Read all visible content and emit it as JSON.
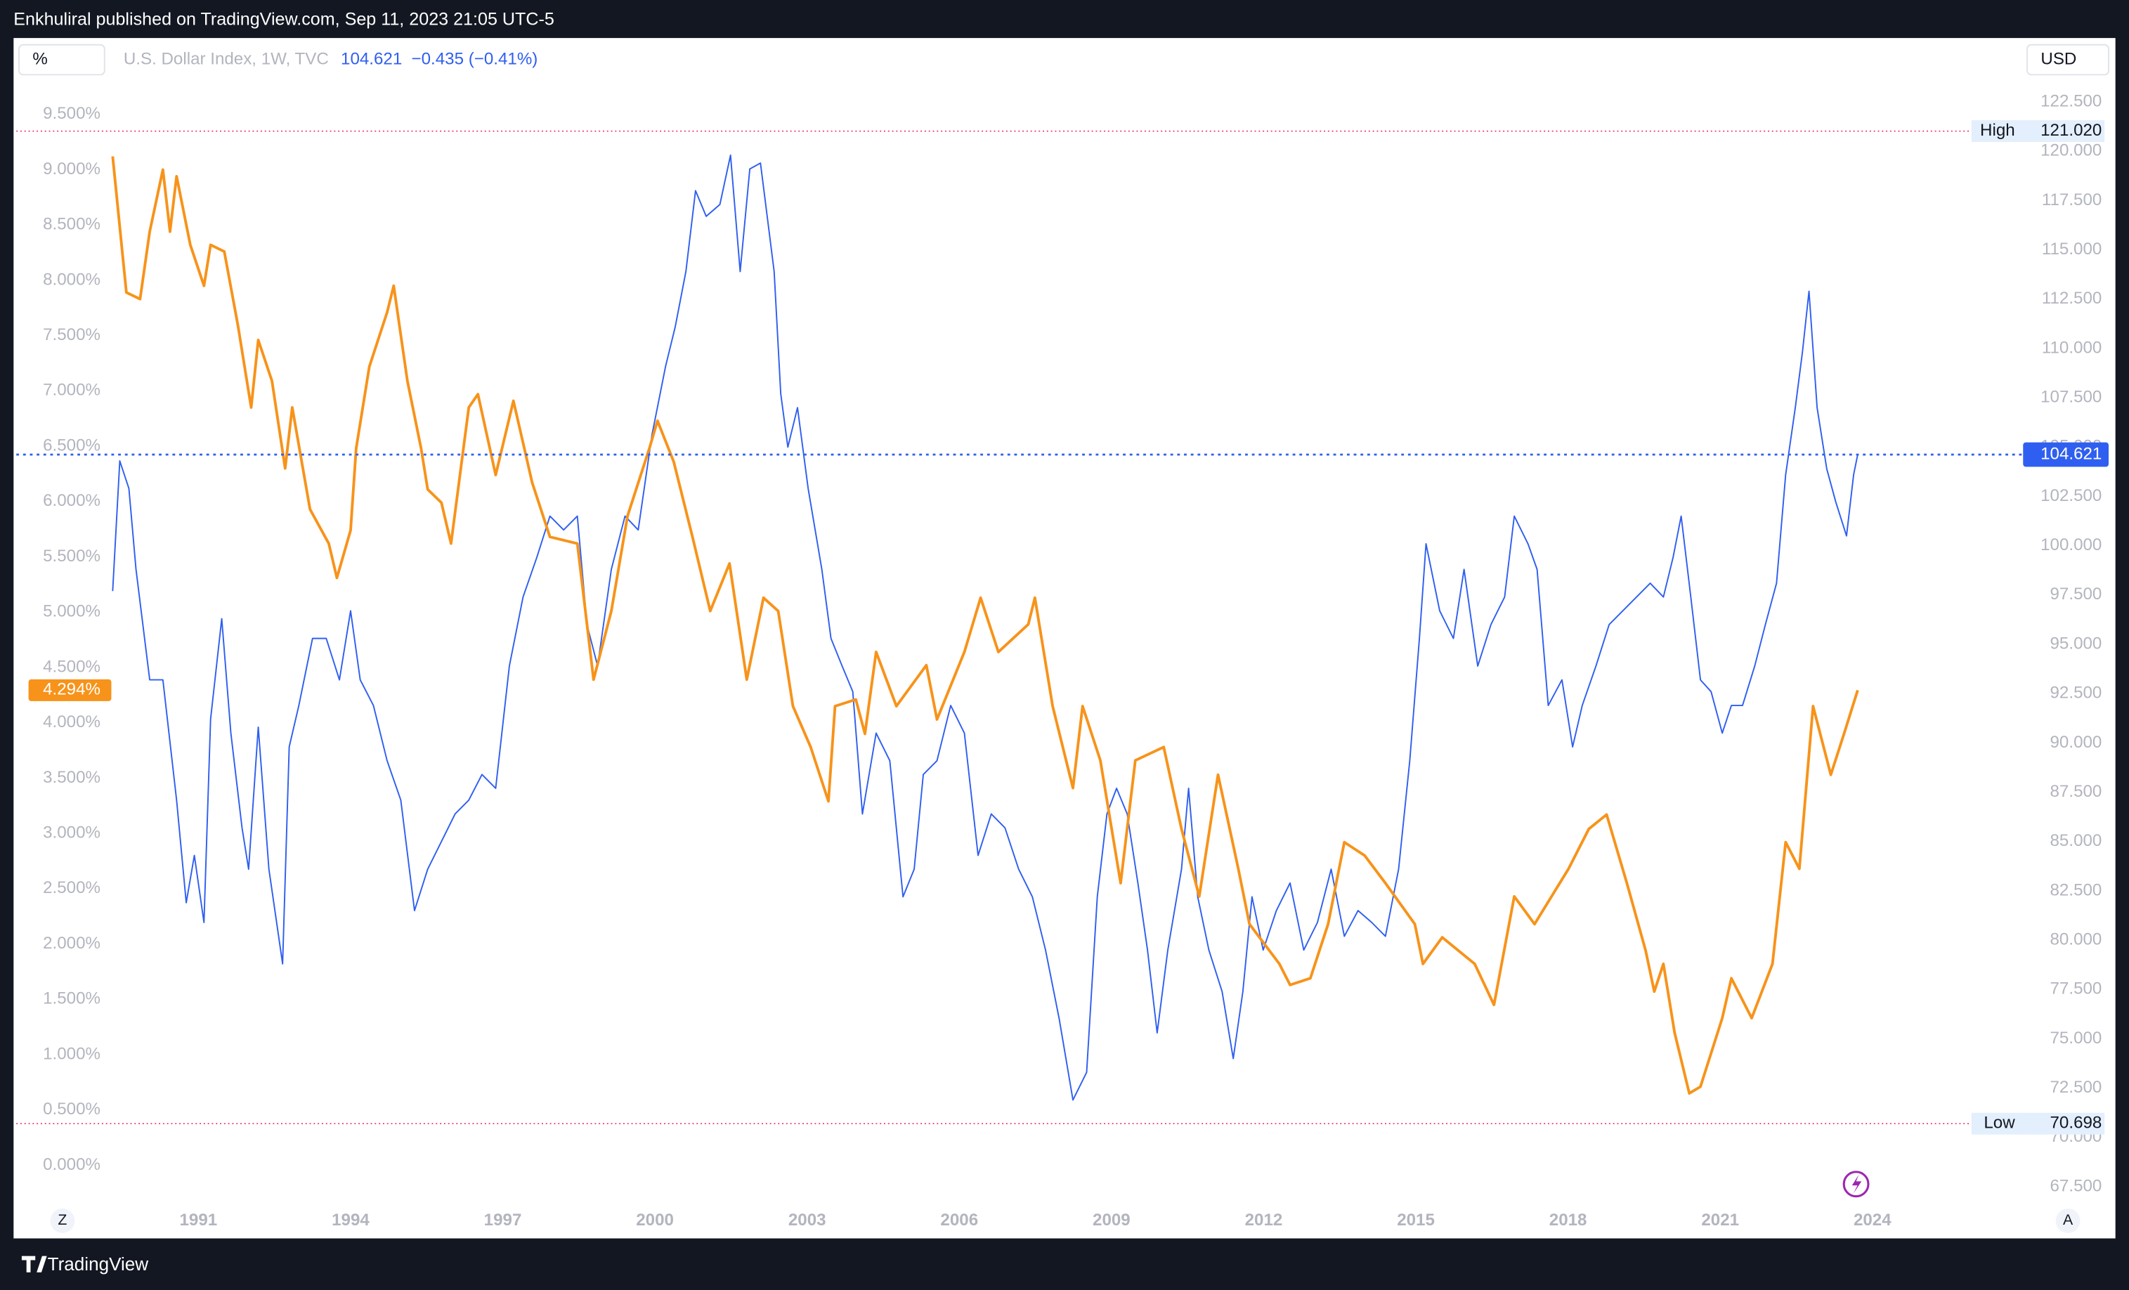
{
  "header": {
    "text": "Enkhuliral published on TradingView.com, Sep 11, 2023 21:05 UTC-5"
  },
  "toolbar": {
    "scale": "%",
    "currency": "USD",
    "left_button": "Z",
    "right_button": "A"
  },
  "footer": {
    "brand": "TradingView"
  },
  "chart_data": {
    "type": "line",
    "legend": {
      "price": 104.621,
      "change": "−0.435 (−0.41%)"
    },
    "price_line": 104.621,
    "left_badge": {
      "value": 4.294,
      "label": "4.294%"
    },
    "high": {
      "name": "High",
      "level": {
        "value": 121.02,
        "label": "121.020"
      }
    },
    "low": {
      "name": "Low",
      "level": {
        "value": 70.698,
        "label": "70.698"
      }
    },
    "grid": false,
    "xlim": [
      1987.41,
      2026.81
    ],
    "xticks": [
      1991,
      1994,
      1997,
      2000,
      2003,
      2006,
      2009,
      2012,
      2015,
      2018,
      2021,
      2024
    ],
    "ylim": [
      -0.33,
      10.19
    ],
    "yticks": [
      {
        "value": 0,
        "label": "0.000%"
      },
      {
        "value": 0.5,
        "label": "0.500%"
      },
      {
        "value": 1,
        "label": "1.000%"
      },
      {
        "value": 1.5,
        "label": "1.500%"
      },
      {
        "value": 2,
        "label": "2.000%"
      },
      {
        "value": 2.5,
        "label": "2.500%"
      },
      {
        "value": 3,
        "label": "3.000%"
      },
      {
        "value": 3.5,
        "label": "3.500%"
      },
      {
        "value": 4,
        "label": "4.000%"
      },
      {
        "value": 4.5,
        "label": "4.500%"
      },
      {
        "value": 5,
        "label": "5.000%"
      },
      {
        "value": 5.5,
        "label": "5.500%"
      },
      {
        "value": 6,
        "label": "6.000%"
      },
      {
        "value": 6.5,
        "label": "6.500%"
      },
      {
        "value": 7,
        "label": "7.000%"
      },
      {
        "value": 7.5,
        "label": "7.500%"
      },
      {
        "value": 8,
        "label": "8.000%"
      },
      {
        "value": 8.5,
        "label": "8.500%"
      },
      {
        "value": 9,
        "label": "9.000%"
      },
      {
        "value": 9.5,
        "label": "9.500%"
      }
    ],
    "y2lim": [
      66.74,
      125.74
    ],
    "y2ticks": [
      {
        "value": 67.5,
        "label": "67.500"
      },
      {
        "value": 70,
        "label": "70.000"
      },
      {
        "value": 72.5,
        "label": "72.500"
      },
      {
        "value": 75,
        "label": "75.000"
      },
      {
        "value": 77.5,
        "label": "77.500"
      },
      {
        "value": 80,
        "label": "80.000"
      },
      {
        "value": 82.5,
        "label": "82.500"
      },
      {
        "value": 85,
        "label": "85.000"
      },
      {
        "value": 87.5,
        "label": "87.500"
      },
      {
        "value": 90,
        "label": "90.000"
      },
      {
        "value": 92.5,
        "label": "92.500"
      },
      {
        "value": 95,
        "label": "95.000"
      },
      {
        "value": 97.5,
        "label": "97.500"
      },
      {
        "value": 100,
        "label": "100.000"
      },
      {
        "value": 102.5,
        "label": "102.500"
      },
      {
        "value": 105,
        "label": "105.000"
      },
      {
        "value": 107.5,
        "label": "107.500"
      },
      {
        "value": 110,
        "label": "110.000"
      },
      {
        "value": 112.5,
        "label": "112.500"
      },
      {
        "value": 115,
        "label": "115.000"
      },
      {
        "value": 117.5,
        "label": "117.500"
      },
      {
        "value": 120,
        "label": "120.000"
      },
      {
        "value": 122.5,
        "label": "122.500"
      }
    ],
    "series": [
      {
        "name": "U.S. Dollar Index, 1W, TVC",
        "color": "#2f5ff0",
        "axis": "y2",
        "x": [
          1989.31,
          1989.45,
          1989.63,
          1989.77,
          1990.04,
          1990.3,
          1990.57,
          1990.76,
          1990.92,
          1991.11,
          1991.24,
          1991.46,
          1991.64,
          1991.86,
          1991.99,
          1992.18,
          1992.39,
          1992.66,
          1992.79,
          1992.98,
          1993.25,
          1993.52,
          1993.78,
          1994.0,
          1994.19,
          1994.45,
          1994.72,
          1994.99,
          1995.26,
          1995.52,
          1995.79,
          1996.06,
          1996.33,
          1996.59,
          1996.86,
          1997.13,
          1997.4,
          1997.67,
          1997.93,
          1998.2,
          1998.47,
          1998.66,
          1998.87,
          1999.14,
          1999.41,
          1999.67,
          1999.94,
          2000.21,
          2000.4,
          2000.61,
          2000.8,
          2001.01,
          2001.28,
          2001.49,
          2001.68,
          2001.87,
          2002.08,
          2002.35,
          2002.48,
          2002.62,
          2002.81,
          2003.02,
          2003.29,
          2003.47,
          2003.69,
          2003.9,
          2004.09,
          2004.36,
          2004.63,
          2004.89,
          2005.11,
          2005.29,
          2005.56,
          2005.83,
          2006.1,
          2006.37,
          2006.63,
          2006.9,
          2007.17,
          2007.44,
          2007.7,
          2007.97,
          2008.24,
          2008.51,
          2008.72,
          2008.91,
          2009.1,
          2009.31,
          2009.52,
          2009.71,
          2009.9,
          2010.11,
          2010.38,
          2010.52,
          2010.7,
          2010.92,
          2011.18,
          2011.4,
          2011.59,
          2011.77,
          2011.99,
          2012.25,
          2012.52,
          2012.79,
          2013.06,
          2013.33,
          2013.59,
          2013.86,
          2014.13,
          2014.4,
          2014.66,
          2014.88,
          2015.07,
          2015.2,
          2015.47,
          2015.74,
          2015.95,
          2016.22,
          2016.48,
          2016.75,
          2016.94,
          2017.21,
          2017.39,
          2017.61,
          2017.88,
          2018.09,
          2018.28,
          2018.55,
          2018.81,
          2019.08,
          2019.35,
          2019.62,
          2019.88,
          2020.07,
          2020.23,
          2020.42,
          2020.61,
          2020.82,
          2021.04,
          2021.22,
          2021.44,
          2021.68,
          2021.89,
          2022.11,
          2022.29,
          2022.48,
          2022.62,
          2022.75,
          2022.91,
          2023.1,
          2023.28,
          2023.49,
          2023.63,
          2023.71
        ],
        "values": [
          97.7,
          104.3,
          102.9,
          98.8,
          93.2,
          93.2,
          87.1,
          81.9,
          84.3,
          80.9,
          91.2,
          96.3,
          90.5,
          85.7,
          83.6,
          90.8,
          83.6,
          78.8,
          89.8,
          91.9,
          95.3,
          95.3,
          93.2,
          96.7,
          93.2,
          91.9,
          89.1,
          87.1,
          81.5,
          83.6,
          85.0,
          86.4,
          87.1,
          88.4,
          87.7,
          93.9,
          97.4,
          99.4,
          101.5,
          100.8,
          101.5,
          96.0,
          93.9,
          98.8,
          101.5,
          100.8,
          105.6,
          109.1,
          111.1,
          113.9,
          118.0,
          116.7,
          117.3,
          119.8,
          113.9,
          119.1,
          119.4,
          113.9,
          107.7,
          105.0,
          107.0,
          102.9,
          98.8,
          95.3,
          93.9,
          92.6,
          86.4,
          90.5,
          89.1,
          82.2,
          83.6,
          88.4,
          89.1,
          91.9,
          90.5,
          84.3,
          86.4,
          85.7,
          83.6,
          82.2,
          79.5,
          76.0,
          71.9,
          73.3,
          82.2,
          86.4,
          87.7,
          86.4,
          82.9,
          79.5,
          75.3,
          79.5,
          83.6,
          87.7,
          82.2,
          79.5,
          77.4,
          74.0,
          77.4,
          82.2,
          79.5,
          81.5,
          82.9,
          79.5,
          80.9,
          83.6,
          80.2,
          81.5,
          80.9,
          80.2,
          83.6,
          89.1,
          95.3,
          100.1,
          96.7,
          95.3,
          98.8,
          93.9,
          96.0,
          97.4,
          101.5,
          100.1,
          98.8,
          91.9,
          93.2,
          89.8,
          91.9,
          93.9,
          96.0,
          96.7,
          97.4,
          98.1,
          97.4,
          99.4,
          101.5,
          97.4,
          93.2,
          92.6,
          90.5,
          91.9,
          91.9,
          93.9,
          96.0,
          98.1,
          103.6,
          107.0,
          109.8,
          112.9,
          107.0,
          103.9,
          102.2,
          100.5,
          103.6,
          104.621
        ]
      },
      {
        "color": "#f7931a",
        "axis": "y",
        "x": [
          1989.31,
          1989.58,
          1989.85,
          1990.04,
          1990.3,
          1990.44,
          1990.57,
          1990.84,
          1991.11,
          1991.24,
          1991.51,
          1991.78,
          1992.04,
          1992.18,
          1992.45,
          1992.71,
          1992.85,
          1993.2,
          1993.57,
          1993.73,
          1994.0,
          1994.11,
          1994.37,
          1994.72,
          1994.85,
          1995.12,
          1995.39,
          1995.52,
          1995.79,
          1995.98,
          1996.33,
          1996.51,
          1996.86,
          1997.21,
          1997.58,
          1997.93,
          1998.47,
          1998.79,
          1999.14,
          1999.46,
          1999.89,
          2000.05,
          2000.37,
          2000.74,
          2001.09,
          2001.47,
          2001.81,
          2002.14,
          2002.43,
          2002.72,
          2003.07,
          2003.42,
          2003.55,
          2003.96,
          2004.14,
          2004.36,
          2004.76,
          2005.35,
          2005.56,
          2006.1,
          2006.42,
          2006.77,
          2007.36,
          2007.49,
          2007.84,
          2008.24,
          2008.43,
          2008.78,
          2009.18,
          2009.47,
          2010.03,
          2010.38,
          2010.73,
          2011.1,
          2011.5,
          2011.72,
          2012.31,
          2012.52,
          2012.92,
          2013.27,
          2013.59,
          2013.99,
          2014.4,
          2014.98,
          2015.14,
          2015.52,
          2016.16,
          2016.54,
          2016.94,
          2017.34,
          2018.01,
          2018.41,
          2018.76,
          2019.16,
          2019.53,
          2019.7,
          2019.88,
          2020.1,
          2020.39,
          2020.61,
          2021.04,
          2021.22,
          2021.62,
          2022.03,
          2022.29,
          2022.56,
          2022.83,
          2023.18,
          2023.44,
          2023.71
        ],
        "values": [
          9.12,
          7.89,
          7.83,
          8.44,
          9.0,
          8.44,
          8.94,
          8.32,
          7.95,
          8.32,
          8.26,
          7.59,
          6.85,
          7.46,
          7.09,
          6.3,
          6.85,
          5.93,
          5.62,
          5.31,
          5.74,
          6.48,
          7.22,
          7.71,
          7.95,
          7.09,
          6.48,
          6.11,
          5.99,
          5.62,
          6.85,
          6.97,
          6.24,
          6.91,
          6.17,
          5.68,
          5.62,
          4.39,
          5.01,
          5.87,
          6.48,
          6.73,
          6.36,
          5.68,
          5.01,
          5.44,
          4.39,
          5.13,
          5.01,
          4.15,
          3.78,
          3.29,
          4.15,
          4.21,
          3.9,
          4.64,
          4.15,
          4.52,
          4.03,
          4.64,
          5.13,
          4.64,
          4.89,
          5.13,
          4.15,
          3.41,
          4.15,
          3.66,
          2.55,
          3.66,
          3.78,
          3.04,
          2.43,
          3.53,
          2.68,
          2.18,
          1.82,
          1.63,
          1.69,
          2.18,
          2.92,
          2.8,
          2.55,
          2.18,
          1.82,
          2.06,
          1.82,
          1.45,
          2.43,
          2.18,
          2.68,
          3.04,
          3.17,
          2.55,
          1.94,
          1.57,
          1.82,
          1.2,
          0.65,
          0.71,
          1.33,
          1.69,
          1.33,
          1.82,
          2.92,
          2.68,
          4.15,
          3.53,
          3.9,
          4.294
        ]
      }
    ]
  }
}
